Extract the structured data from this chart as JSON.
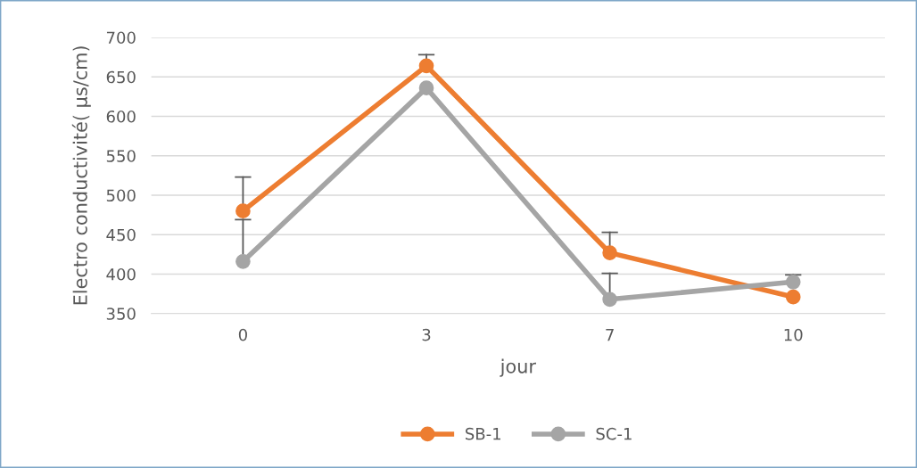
{
  "chart_data": {
    "type": "line",
    "xlabel": "jour",
    "ylabel": "Electro conductivité( µs/cm)",
    "categories": [
      "0",
      "3",
      "7",
      "10"
    ],
    "series": [
      {
        "name": "SB-1",
        "color": "#ed7d31",
        "values": [
          480,
          664,
          427,
          371
        ],
        "errors": [
          [
            480,
            523
          ],
          [
            664,
            678
          ],
          [
            427,
            453
          ],
          null
        ]
      },
      {
        "name": "SC-1",
        "color": "#a5a5a5",
        "values": [
          416,
          636,
          368,
          390
        ],
        "errors": [
          [
            416,
            469
          ],
          null,
          [
            368,
            401
          ],
          [
            390,
            399
          ]
        ]
      }
    ],
    "ylim": [
      350,
      700
    ],
    "yticks": [
      350,
      400,
      450,
      500,
      550,
      600,
      650,
      700
    ],
    "grid": "y",
    "legend": "bottom",
    "marker": "circle",
    "line_style": "solid"
  }
}
